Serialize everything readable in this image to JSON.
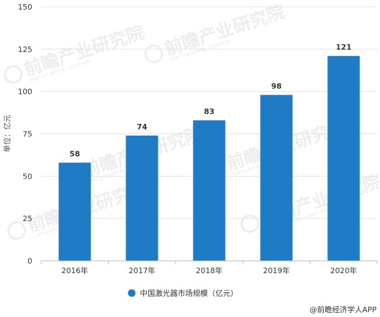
{
  "chart_data": {
    "type": "bar",
    "categories": [
      "2016年",
      "2017年",
      "2018年",
      "2019年",
      "2020年"
    ],
    "series": [
      {
        "name": "中国激光器市场规模（亿元）",
        "values": [
          58,
          74,
          83,
          98,
          121
        ],
        "color": "#1f7bc6"
      }
    ],
    "ylabel": "单位：亿元",
    "xlabel": "",
    "ylim": [
      0,
      150
    ],
    "yticks": [
      0,
      25,
      50,
      75,
      100,
      125,
      150
    ],
    "grid": true,
    "legend_position": "bottom-center",
    "data_labels": [
      "58",
      "74",
      "83",
      "98",
      "121"
    ]
  },
  "source": "@前瞻经济学人APP",
  "watermark": {
    "text": "前瞻产业研究院",
    "subtext": "中国产业咨询领导者 · QIANZHAN"
  }
}
